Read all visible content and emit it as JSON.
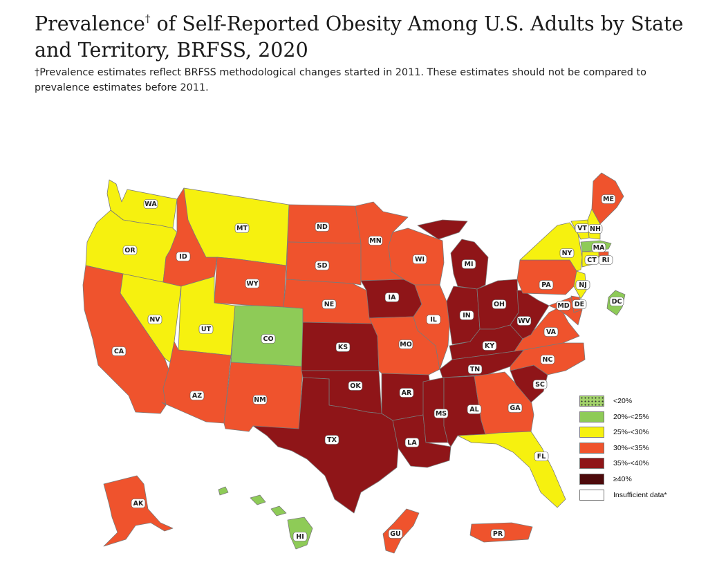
{
  "header": {
    "title": "Prevalence",
    "title_mark": "†",
    "title_rest": " of Self-Reported Obesity Among U.S. Adults by State and Territory, BRFSS, 2020",
    "subtitle": "†Prevalence estimates reflect BRFSS methodological changes started in 2011. These estimates should not be compared to prevalence estimates before 2011."
  },
  "colors": {
    "lt20": "#a3d36b",
    "c20_25": "#8ecb57",
    "c25_30": "#f6f10f",
    "c30_35": "#ef532d",
    "c35_40": "#8f1518",
    "ge40": "#4d0a0b",
    "insufficient": "#ffffff"
  },
  "legend": [
    {
      "key": "lt20",
      "label": "<20%",
      "pattern": "dots"
    },
    {
      "key": "c20_25",
      "label": "20%-<25%"
    },
    {
      "key": "c25_30",
      "label": "25%-<30%"
    },
    {
      "key": "c30_35",
      "label": "30%-<35%"
    },
    {
      "key": "c35_40",
      "label": "35%-<40%"
    },
    {
      "key": "ge40",
      "label": "≥40%"
    },
    {
      "key": "insufficient",
      "label": "Insufficient data*"
    }
  ],
  "states": [
    {
      "abbr": "WA",
      "category": "c25_30"
    },
    {
      "abbr": "OR",
      "category": "c25_30"
    },
    {
      "abbr": "CA",
      "category": "c30_35"
    },
    {
      "abbr": "NV",
      "category": "c25_30"
    },
    {
      "abbr": "ID",
      "category": "c30_35"
    },
    {
      "abbr": "MT",
      "category": "c25_30"
    },
    {
      "abbr": "WY",
      "category": "c30_35"
    },
    {
      "abbr": "UT",
      "category": "c25_30"
    },
    {
      "abbr": "AZ",
      "category": "c30_35"
    },
    {
      "abbr": "CO",
      "category": "c20_25"
    },
    {
      "abbr": "NM",
      "category": "c30_35"
    },
    {
      "abbr": "ND",
      "category": "c30_35"
    },
    {
      "abbr": "SD",
      "category": "c30_35"
    },
    {
      "abbr": "NE",
      "category": "c30_35"
    },
    {
      "abbr": "KS",
      "category": "c35_40"
    },
    {
      "abbr": "OK",
      "category": "c35_40"
    },
    {
      "abbr": "TX",
      "category": "c35_40"
    },
    {
      "abbr": "MN",
      "category": "c30_35"
    },
    {
      "abbr": "IA",
      "category": "c35_40"
    },
    {
      "abbr": "MO",
      "category": "c30_35"
    },
    {
      "abbr": "AR",
      "category": "c35_40"
    },
    {
      "abbr": "LA",
      "category": "c35_40"
    },
    {
      "abbr": "WI",
      "category": "c30_35"
    },
    {
      "abbr": "IL",
      "category": "c30_35"
    },
    {
      "abbr": "MI",
      "category": "c35_40"
    },
    {
      "abbr": "IN",
      "category": "c35_40"
    },
    {
      "abbr": "OH",
      "category": "c35_40"
    },
    {
      "abbr": "KY",
      "category": "c35_40"
    },
    {
      "abbr": "TN",
      "category": "c35_40"
    },
    {
      "abbr": "MS",
      "category": "c35_40"
    },
    {
      "abbr": "AL",
      "category": "c35_40"
    },
    {
      "abbr": "GA",
      "category": "c30_35"
    },
    {
      "abbr": "FL",
      "category": "c25_30"
    },
    {
      "abbr": "SC",
      "category": "c35_40"
    },
    {
      "abbr": "NC",
      "category": "c30_35"
    },
    {
      "abbr": "VA",
      "category": "c30_35"
    },
    {
      "abbr": "WV",
      "category": "c35_40"
    },
    {
      "abbr": "PA",
      "category": "c30_35"
    },
    {
      "abbr": "NY",
      "category": "c25_30"
    },
    {
      "abbr": "VT",
      "category": "c25_30"
    },
    {
      "abbr": "NH",
      "category": "c25_30"
    },
    {
      "abbr": "ME",
      "category": "c30_35"
    },
    {
      "abbr": "MA",
      "category": "c20_25"
    },
    {
      "abbr": "RI",
      "category": "c30_35"
    },
    {
      "abbr": "CT",
      "category": "c25_30"
    },
    {
      "abbr": "NJ",
      "category": "c25_30"
    },
    {
      "abbr": "DE",
      "category": "c30_35"
    },
    {
      "abbr": "MD",
      "category": "c30_35"
    },
    {
      "abbr": "DC",
      "category": "c20_25"
    },
    {
      "abbr": "AK",
      "category": "c30_35"
    },
    {
      "abbr": "HI",
      "category": "c20_25"
    },
    {
      "abbr": "GU",
      "category": "c30_35"
    },
    {
      "abbr": "PR",
      "category": "c30_35"
    }
  ]
}
